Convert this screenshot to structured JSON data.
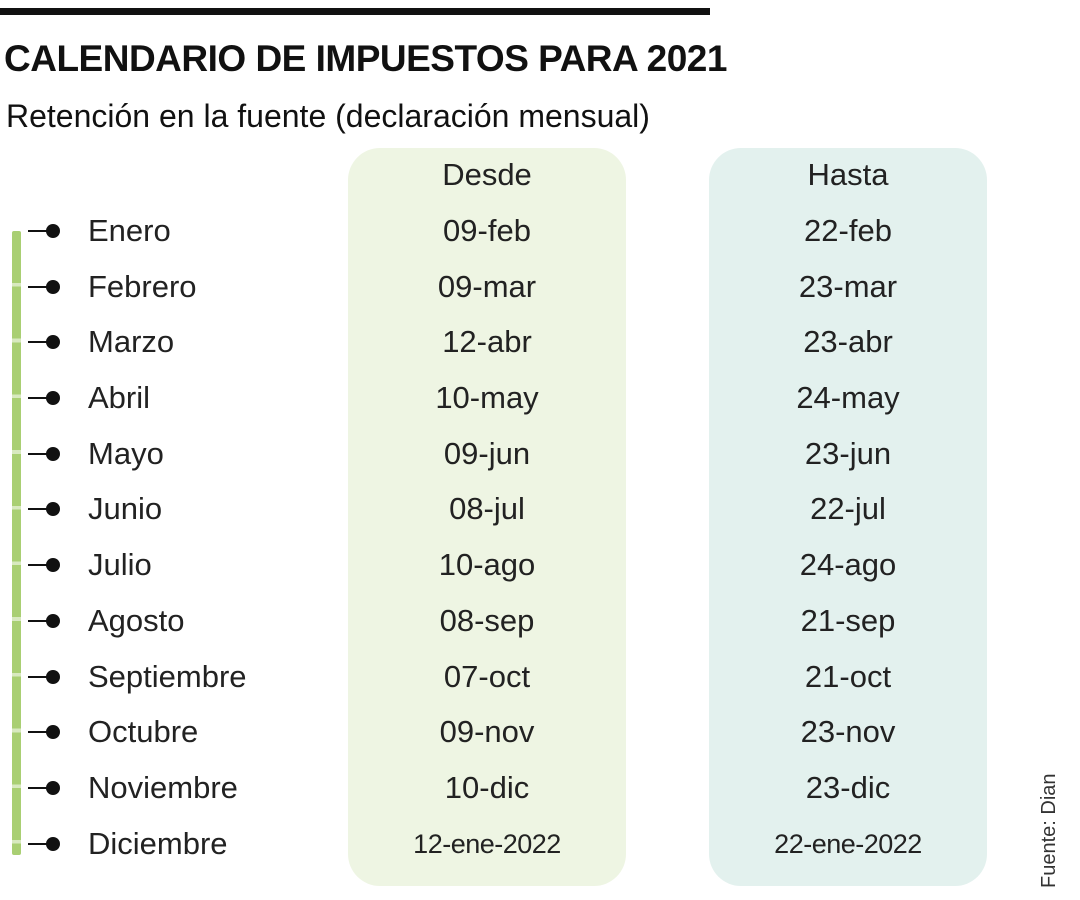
{
  "title": "CALENDARIO DE IMPUESTOS PARA 2021",
  "subtitle": "Retención en la fuente (declaración mensual)",
  "columns": {
    "desde": "Desde",
    "hasta": "Hasta"
  },
  "rows": [
    {
      "month": "Enero",
      "desde": "09-feb",
      "hasta": "22-feb"
    },
    {
      "month": "Febrero",
      "desde": "09-mar",
      "hasta": "23-mar"
    },
    {
      "month": "Marzo",
      "desde": "12-abr",
      "hasta": "23-abr"
    },
    {
      "month": "Abril",
      "desde": "10-may",
      "hasta": "24-may"
    },
    {
      "month": "Mayo",
      "desde": "09-jun",
      "hasta": "23-jun"
    },
    {
      "month": "Junio",
      "desde": "08-jul",
      "hasta": "22-jul"
    },
    {
      "month": "Julio",
      "desde": "10-ago",
      "hasta": "24-ago"
    },
    {
      "month": "Agosto",
      "desde": "08-sep",
      "hasta": "21-sep"
    },
    {
      "month": "Septiembre",
      "desde": "07-oct",
      "hasta": "21-oct"
    },
    {
      "month": "Octubre",
      "desde": "09-nov",
      "hasta": "23-nov"
    },
    {
      "month": "Noviembre",
      "desde": "10-dic",
      "hasta": "23-dic"
    },
    {
      "month": "Diciembre",
      "desde": "12-ene-2022",
      "hasta": "22-ene-2022"
    }
  ],
  "source": "Fuente: Dian",
  "colors": {
    "desde_panel": "#eef5e3",
    "hasta_panel": "#e3f1ee",
    "timeline": "#a9cf73",
    "text": "#111111"
  }
}
